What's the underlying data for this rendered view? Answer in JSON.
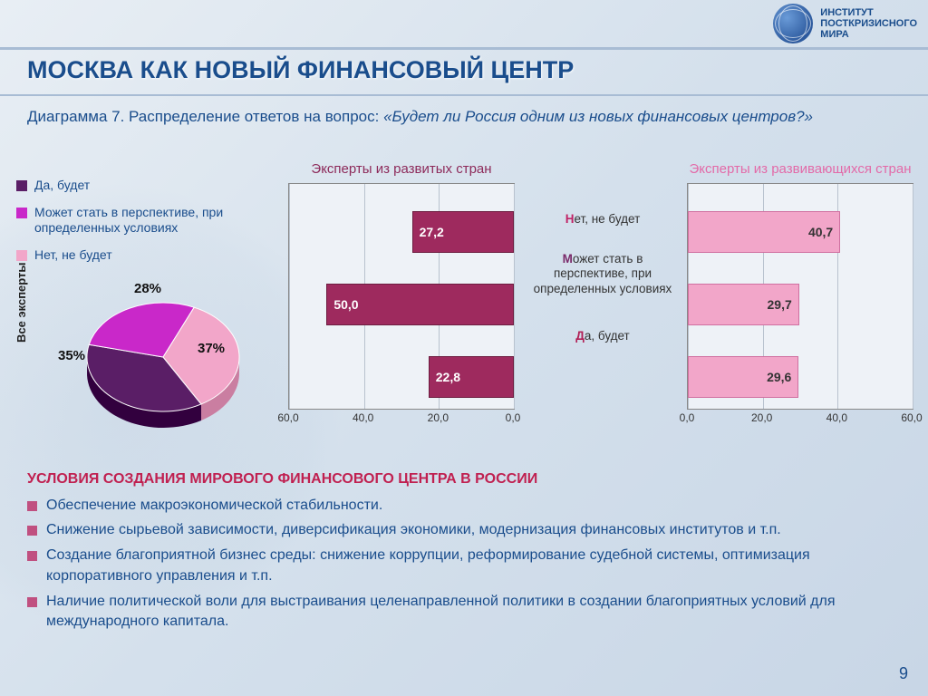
{
  "org": {
    "line1": "ИНСТИТУТ",
    "line2": "ПОСТКРИЗИСНОГО",
    "line3": "МИРА"
  },
  "title": "МОСКВА КАК НОВЫЙ ФИНАНСОВЫЙ ЦЕНТР",
  "subtitle_label": "Диаграмма 7. Распределение ответов на вопрос: ",
  "subtitle_question": "«Будет ли Россия одним из новых финансовых центров?»",
  "legend": {
    "items": [
      {
        "label": "Да, будет",
        "color": "#5a1e66"
      },
      {
        "label": "Может стать в перспективе, при определенных условиях",
        "color": "#c928c9"
      },
      {
        "label": "Нет, не будет",
        "color": "#f2a6c9"
      }
    ]
  },
  "pie": {
    "ylabel": "Все эксперты",
    "slices": [
      {
        "label": "37%",
        "value": 37,
        "color": "#5a1e66"
      },
      {
        "label": "28%",
        "value": 28,
        "color": "#c928c9"
      },
      {
        "label": "35%",
        "value": 35,
        "color": "#f2a6c9"
      }
    ],
    "radius": 78,
    "label_fontsize": 15
  },
  "categories": {
    "c1": "Нет, не будет",
    "c2": "Может стать в перспективе, при определенных условиях",
    "c3": "Да, будет"
  },
  "bar_left": {
    "title": "Эксперты из развитых стран",
    "title_color": "#8d2a5a",
    "reversed_axis": true,
    "xmax": 60.0,
    "ticks": [
      "60,0",
      "40,0",
      "20,0",
      "0,0"
    ],
    "bars": [
      {
        "value": 27.2,
        "label": "27,2"
      },
      {
        "value": 50.0,
        "label": "50,0"
      },
      {
        "value": 22.8,
        "label": "22,8"
      }
    ],
    "bar_color": "#9e2a5e",
    "bar_border": "#6d1c40",
    "value_text_color": "#ffffff"
  },
  "bar_right": {
    "title": "Эксперты из развивающихся стран",
    "title_color": "#e36aa8",
    "reversed_axis": false,
    "xmax": 60.0,
    "ticks": [
      "0,0",
      "20,0",
      "40,0",
      "60,0"
    ],
    "bars": [
      {
        "value": 40.7,
        "label": "40,7"
      },
      {
        "value": 29.7,
        "label": "29,7"
      },
      {
        "value": 29.6,
        "label": "29,6"
      }
    ],
    "bar_color": "#f2a6c9",
    "bar_border": "#d070a0",
    "value_text_color": "#333333"
  },
  "conditions": {
    "title": "УСЛОВИЯ СОЗДАНИЯ МИРОВОГО ФИНАНСОВОГО ЦЕНТРА В РОССИИ",
    "bullets": [
      "Обеспечение макроэкономической стабильности.",
      "Снижение сырьевой зависимости, диверсификация экономики, модернизация финансовых институтов и т.п.",
      "Создание благоприятной бизнес среды: снижение коррупции, реформирование судебной системы, оптимизация корпоративного управления и т.п.",
      "Наличие политической воли для выстраивания целенаправленной политики в создании благоприятных условий для международного капитала."
    ],
    "bullet_color": "#c05080"
  },
  "page_number": "9",
  "style": {
    "title_color": "#1a4d8c",
    "background_gradient": [
      "#e8eef4",
      "#c8d6e6"
    ],
    "grid_color": "#b8c2ce",
    "plot_bg": "#eef2f7",
    "axis_color": "#888888"
  }
}
